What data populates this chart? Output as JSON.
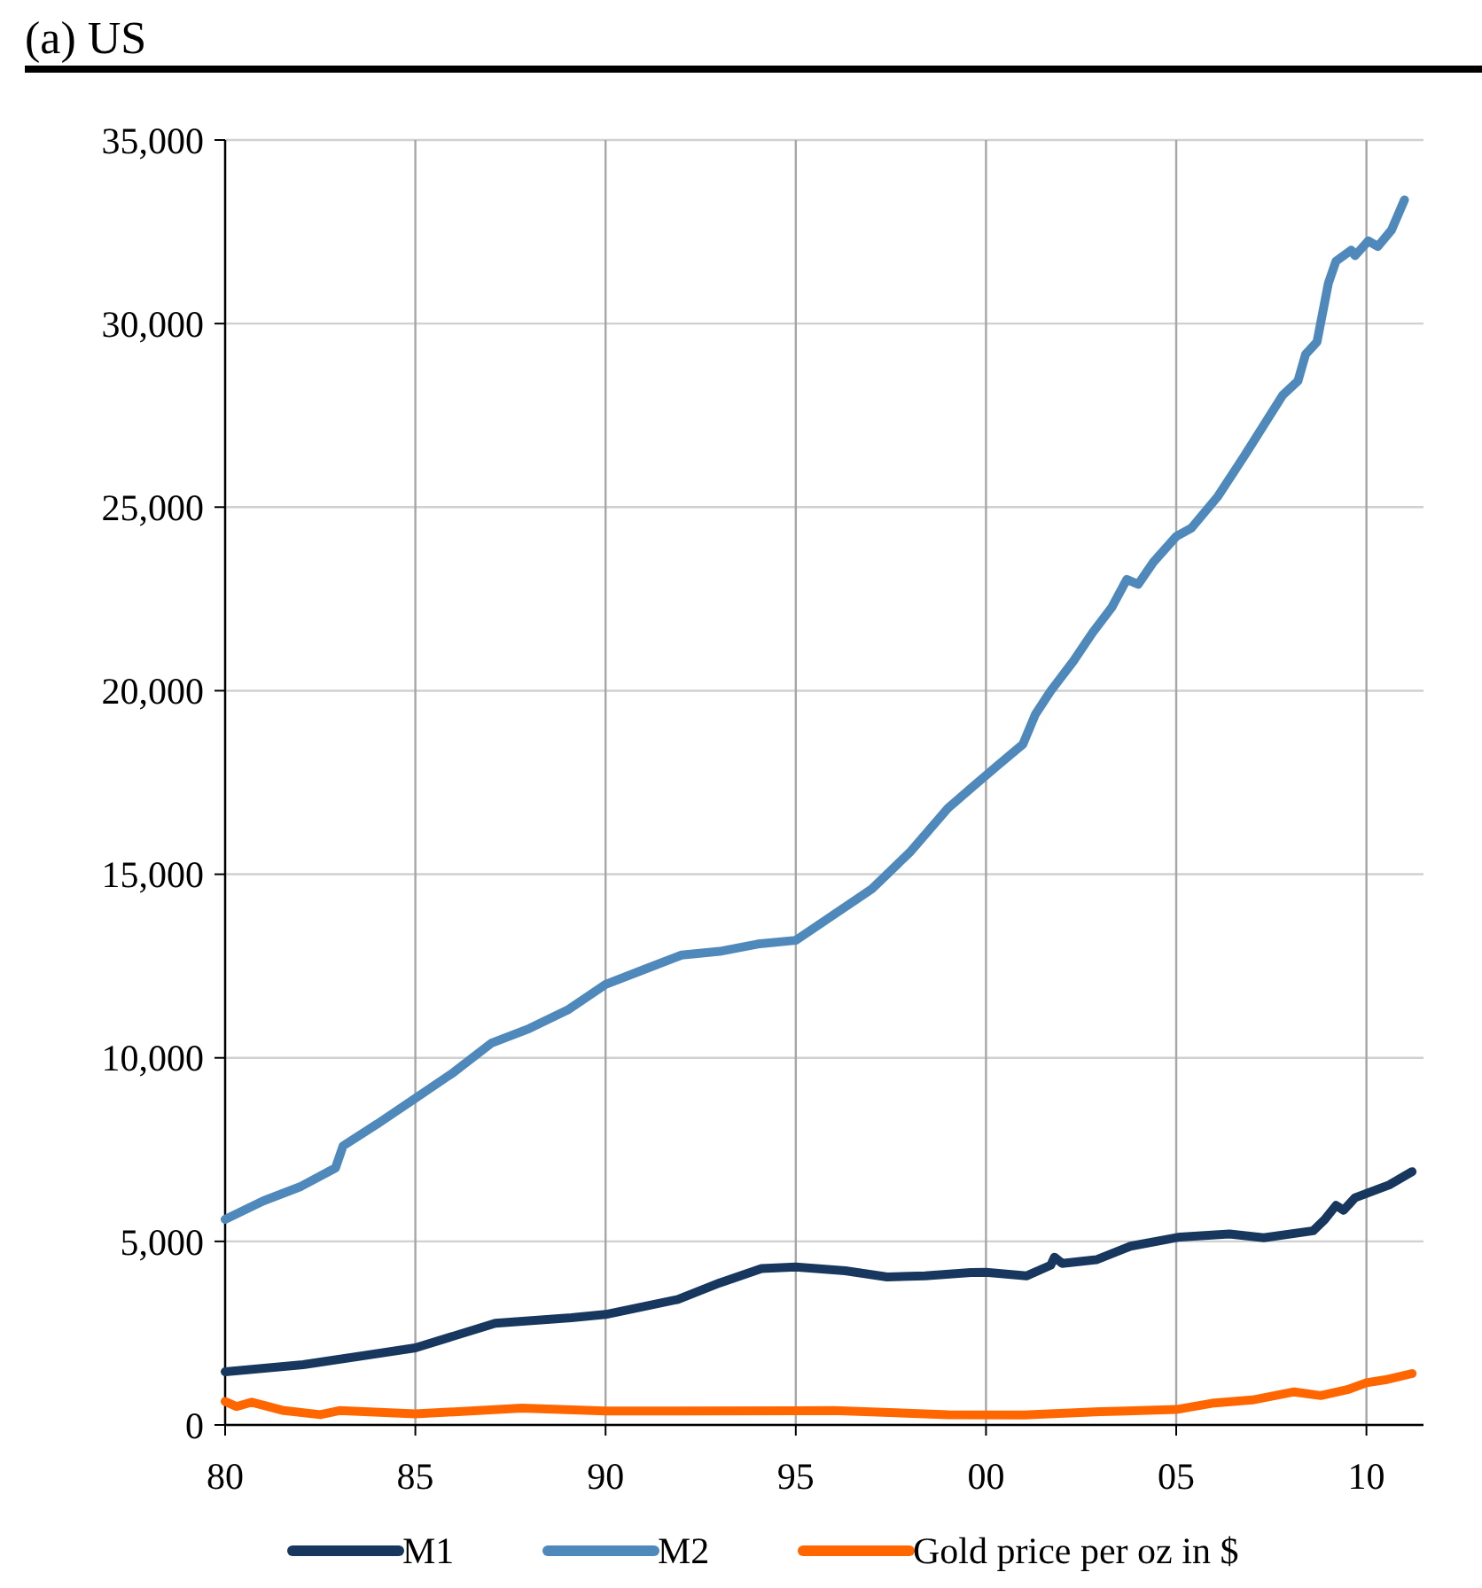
{
  "chart_data": {
    "type": "line",
    "title": "(a) US",
    "xlim": [
      1980,
      2011.5
    ],
    "xticks": [
      {
        "value": 1980,
        "label": "80"
      },
      {
        "value": 1985,
        "label": "85"
      },
      {
        "value": 1990,
        "label": "90"
      },
      {
        "value": 1995,
        "label": "95"
      },
      {
        "value": 2000,
        "label": "00"
      },
      {
        "value": 2005,
        "label": "05"
      },
      {
        "value": 2010,
        "label": "10"
      }
    ],
    "ylim": [
      0,
      35000
    ],
    "yticks": [
      {
        "value": 0,
        "label": "0"
      },
      {
        "value": 5000,
        "label": "5,000"
      },
      {
        "value": 10000,
        "label": "10,000"
      },
      {
        "value": 15000,
        "label": "15,000"
      },
      {
        "value": 20000,
        "label": "20,000"
      },
      {
        "value": 25000,
        "label": "25,000"
      },
      {
        "value": 30000,
        "label": "30,000"
      },
      {
        "value": 35000,
        "label": "35,000"
      }
    ],
    "grid": true,
    "legend": "bottom",
    "marker": "none",
    "line_style": "solid",
    "series": [
      {
        "name": "M1",
        "color": "#17375e",
        "x": [
          1980,
          1982.05,
          1985,
          1987.1,
          1989.1,
          1990,
          1991.9,
          1993,
          1994.1,
          1995,
          1996.3,
          1997.4,
          1998.4,
          1999.6,
          2000,
          2001.06,
          2001.7,
          2001.8,
          2002,
          2002.9,
          2003.8,
          2005.1,
          2006.4,
          2007.3,
          2008.6,
          2008.9,
          2009.2,
          2009.4,
          2009.7,
          2010.6,
          2011.2
        ],
        "values": [
          1450,
          1640,
          2100,
          2770,
          2920,
          3010,
          3420,
          3870,
          4260,
          4300,
          4200,
          4030,
          4060,
          4150,
          4160,
          4060,
          4350,
          4570,
          4400,
          4500,
          4870,
          5120,
          5200,
          5100,
          5290,
          5590,
          5980,
          5850,
          6190,
          6540,
          6900
        ]
      },
      {
        "name": "M2",
        "color": "#4f89bb",
        "x": [
          1980,
          1981,
          1982,
          1982.9,
          1983.1,
          1984,
          1985,
          1986,
          1987,
          1988,
          1989,
          1990,
          1991,
          1992,
          1993,
          1994,
          1995,
          1996,
          1997,
          1998,
          1999,
          1999.7,
          2000.3,
          2000.97,
          2001.3,
          2001.7,
          2002.3,
          2002.8,
          2003.3,
          2003.7,
          2004,
          2004.4,
          2005,
          2005.4,
          2006.1,
          2006.8,
          2007.3,
          2007.8,
          2008.2,
          2008.4,
          2008.7,
          2009,
          2009.2,
          2009.6,
          2009.7,
          2010.05,
          2010.3,
          2010.66,
          2011
        ],
        "values": [
          5600,
          6100,
          6500,
          7000,
          7600,
          8200,
          8900,
          9600,
          10400,
          10800,
          11300,
          12000,
          12400,
          12800,
          12900,
          13100,
          13200,
          13900,
          14600,
          15600,
          16800,
          17430,
          17960,
          18540,
          19360,
          19990,
          20810,
          21580,
          22260,
          23030,
          22900,
          23500,
          24200,
          24430,
          25300,
          26410,
          27230,
          28050,
          28440,
          29160,
          29500,
          31100,
          31700,
          32000,
          31850,
          32250,
          32100,
          32550,
          33370
        ]
      },
      {
        "name": "Gold price per oz in $",
        "color": "#ff6600",
        "x": [
          1980,
          1980.3,
          1980.7,
          1981.5,
          1982.5,
          1983,
          1985,
          1987.8,
          1990,
          1995,
          1996,
          1999,
          2001,
          2003,
          2005,
          2006,
          2007,
          2008.1,
          2008.8,
          2009.5,
          2010,
          2010.5,
          2011.2
        ],
        "values": [
          640,
          500,
          620,
          400,
          280,
          390,
          300,
          460,
          380,
          385,
          390,
          280,
          270,
          360,
          420,
          600,
          680,
          900,
          800,
          960,
          1150,
          1230,
          1400
        ]
      }
    ]
  }
}
